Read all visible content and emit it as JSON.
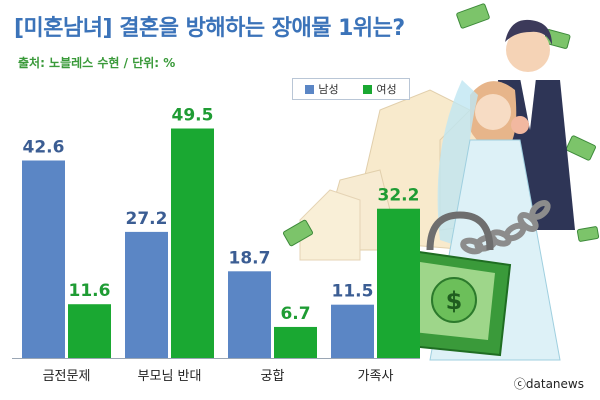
{
  "title": "[미혼남녀] 결혼을 방해하는 장애물 1위는?",
  "subtitle": "출처: 노블레스 수현 / 단위: %",
  "credit": "ⓒdatanews",
  "colors": {
    "male": "#5b86c5",
    "female": "#1aa832",
    "male_label": "#3b5d93",
    "female_label": "#1f9c34",
    "accent": "#3b73b9"
  },
  "chart_data": {
    "type": "bar",
    "categories": [
      "금전문제",
      "부모님 반대",
      "궁합",
      "가족사"
    ],
    "series": [
      {
        "name": "남성",
        "values": [
          42.6,
          27.2,
          18.7,
          11.5
        ]
      },
      {
        "name": "여성",
        "values": [
          11.6,
          49.5,
          6.7,
          32.2
        ]
      }
    ],
    "ylim": [
      0,
      55
    ],
    "grid": false,
    "legend_position": "top-center"
  }
}
